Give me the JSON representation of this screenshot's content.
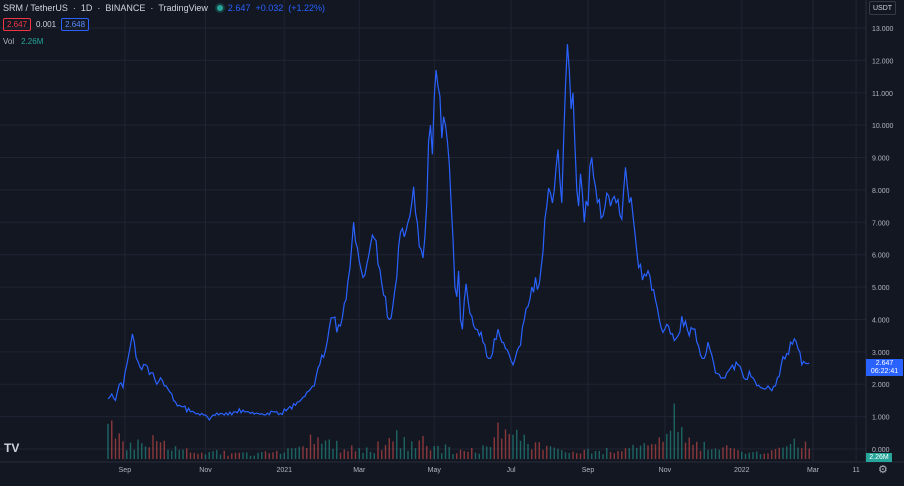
{
  "header": {
    "symbol": "SRM / TetherUS",
    "interval": "1D",
    "exchange": "BINANCE",
    "source": "TradingView",
    "last_price": "2.647",
    "change": "+0.032",
    "change_pct": "(+1.22%)",
    "bid": "2.647",
    "spread": "0.001",
    "ask": "2.648",
    "vol_label": "Vol",
    "vol_value": "2.26M"
  },
  "currency": "USDT",
  "price_badge": {
    "price": "2.647",
    "countdown": "06:22:41"
  },
  "volume_badge": "2.26M",
  "logo": "TV",
  "colors": {
    "background": "#131722",
    "line": "#2962ff",
    "volume_up": "#26a69a",
    "volume_down": "#ef5350",
    "grid": "#1f2433",
    "axis_text": "#b2b5be"
  },
  "chart_data": {
    "type": "line",
    "series": [
      {
        "values": [
          [
            0,
            1.55
          ],
          [
            2,
            1.7
          ],
          [
            4,
            1.5
          ],
          [
            6,
            2.0
          ],
          [
            8,
            1.9
          ],
          [
            10,
            2.6
          ],
          [
            12,
            3.2
          ],
          [
            13,
            3.55
          ],
          [
            14,
            3.3
          ],
          [
            16,
            2.7
          ],
          [
            18,
            2.45
          ],
          [
            20,
            2.6
          ],
          [
            22,
            2.3
          ],
          [
            24,
            2.35
          ],
          [
            26,
            2.0
          ],
          [
            28,
            2.2
          ],
          [
            30,
            1.95
          ],
          [
            32,
            1.85
          ],
          [
            34,
            1.7
          ],
          [
            36,
            1.45
          ],
          [
            38,
            1.35
          ],
          [
            40,
            1.3
          ],
          [
            44,
            1.15
          ],
          [
            48,
            1.1
          ],
          [
            52,
            1.05
          ],
          [
            54,
            0.9
          ],
          [
            56,
            1.05
          ],
          [
            60,
            1.1
          ],
          [
            64,
            1.05
          ],
          [
            68,
            1.15
          ],
          [
            72,
            1.2
          ],
          [
            76,
            1.1
          ],
          [
            80,
            1.1
          ],
          [
            84,
            1.05
          ],
          [
            88,
            1.15
          ],
          [
            92,
            1.1
          ],
          [
            96,
            1.25
          ],
          [
            100,
            1.35
          ],
          [
            104,
            1.6
          ],
          [
            108,
            1.85
          ],
          [
            110,
            1.95
          ],
          [
            112,
            2.5
          ],
          [
            114,
            2.9
          ],
          [
            116,
            3.05
          ],
          [
            118,
            3.75
          ],
          [
            120,
            4.05
          ],
          [
            122,
            3.6
          ],
          [
            124,
            3.8
          ],
          [
            126,
            4.5
          ],
          [
            128,
            5.2
          ],
          [
            130,
            6.3
          ],
          [
            131,
            7.0
          ],
          [
            132,
            6.4
          ],
          [
            134,
            5.8
          ],
          [
            136,
            5.3
          ],
          [
            138,
            5.7
          ],
          [
            140,
            6.3
          ],
          [
            142,
            6.5
          ],
          [
            144,
            5.7
          ],
          [
            146,
            5.1
          ],
          [
            148,
            4.7
          ],
          [
            150,
            4.0
          ],
          [
            152,
            4.45
          ],
          [
            154,
            5.3
          ],
          [
            156,
            6.7
          ],
          [
            158,
            6.55
          ],
          [
            160,
            7.0
          ],
          [
            162,
            7.6
          ],
          [
            163,
            8.1
          ],
          [
            164,
            7.3
          ],
          [
            166,
            6.25
          ],
          [
            168,
            5.9
          ],
          [
            170,
            7.6
          ],
          [
            171,
            9.5
          ],
          [
            172,
            10.0
          ],
          [
            173,
            9.1
          ],
          [
            174,
            10.9
          ],
          [
            175,
            11.7
          ],
          [
            176,
            11.2
          ],
          [
            177,
            10.9
          ],
          [
            178,
            9.6
          ],
          [
            180,
            10.0
          ],
          [
            181,
            9.5
          ],
          [
            182,
            8.8
          ],
          [
            183,
            7.6
          ],
          [
            184,
            6.5
          ],
          [
            185,
            5.0
          ],
          [
            186,
            4.7
          ],
          [
            187,
            5.5
          ],
          [
            188,
            4.0
          ],
          [
            189,
            3.7
          ],
          [
            190,
            4.6
          ],
          [
            191,
            5.1
          ],
          [
            192,
            4.6
          ],
          [
            194,
            4.1
          ],
          [
            196,
            3.7
          ],
          [
            198,
            3.5
          ],
          [
            200,
            3.3
          ],
          [
            202,
            2.85
          ],
          [
            204,
            2.8
          ],
          [
            206,
            3.4
          ],
          [
            208,
            3.7
          ],
          [
            210,
            3.3
          ],
          [
            212,
            3.1
          ],
          [
            214,
            2.9
          ],
          [
            216,
            2.6
          ],
          [
            218,
            3.0
          ],
          [
            220,
            3.2
          ],
          [
            222,
            4.0
          ],
          [
            224,
            4.4
          ],
          [
            226,
            5.0
          ],
          [
            228,
            5.3
          ],
          [
            230,
            5.1
          ],
          [
            232,
            6.1
          ],
          [
            234,
            7.5
          ],
          [
            236,
            7.9
          ],
          [
            237,
            7.6
          ],
          [
            238,
            8.0
          ],
          [
            239,
            8.7
          ],
          [
            240,
            9.25
          ],
          [
            241,
            8.3
          ],
          [
            242,
            7.6
          ],
          [
            243,
            9.5
          ],
          [
            244,
            11.2
          ],
          [
            245,
            12.5
          ],
          [
            246,
            11.7
          ],
          [
            247,
            10.5
          ],
          [
            248,
            11.0
          ],
          [
            249,
            9.4
          ],
          [
            250,
            8.0
          ],
          [
            251,
            7.5
          ],
          [
            252,
            8.5
          ],
          [
            253,
            7.9
          ],
          [
            254,
            7.0
          ],
          [
            256,
            7.5
          ],
          [
            258,
            9.0
          ],
          [
            259,
            8.4
          ],
          [
            260,
            8.1
          ],
          [
            262,
            7.7
          ],
          [
            264,
            7.2
          ],
          [
            266,
            7.9
          ],
          [
            268,
            7.5
          ],
          [
            270,
            7.8
          ],
          [
            272,
            7.7
          ],
          [
            274,
            7.1
          ],
          [
            276,
            8.7
          ],
          [
            277,
            8.1
          ],
          [
            278,
            7.6
          ],
          [
            280,
            7.2
          ],
          [
            282,
            6.1
          ],
          [
            284,
            5.7
          ],
          [
            286,
            5.4
          ],
          [
            288,
            5.5
          ],
          [
            290,
            4.9
          ],
          [
            292,
            4.6
          ],
          [
            294,
            4.0
          ],
          [
            296,
            3.6
          ],
          [
            298,
            3.85
          ],
          [
            300,
            3.55
          ],
          [
            302,
            3.35
          ],
          [
            304,
            3.5
          ],
          [
            306,
            4.1
          ],
          [
            308,
            3.95
          ],
          [
            310,
            3.5
          ],
          [
            312,
            3.7
          ],
          [
            314,
            3.3
          ],
          [
            316,
            2.9
          ],
          [
            318,
            2.8
          ],
          [
            320,
            3.3
          ],
          [
            322,
            2.9
          ],
          [
            324,
            2.35
          ],
          [
            326,
            2.3
          ],
          [
            328,
            2.2
          ],
          [
            330,
            2.35
          ],
          [
            332,
            2.5
          ],
          [
            334,
            2.45
          ],
          [
            336,
            2.6
          ],
          [
            338,
            2.4
          ],
          [
            340,
            2.15
          ],
          [
            342,
            2.4
          ],
          [
            344,
            2.2
          ],
          [
            346,
            1.95
          ],
          [
            348,
            1.9
          ],
          [
            350,
            1.85
          ],
          [
            352,
            1.95
          ],
          [
            354,
            1.8
          ],
          [
            356,
            1.95
          ],
          [
            358,
            2.25
          ],
          [
            360,
            2.85
          ],
          [
            362,
            2.95
          ],
          [
            364,
            3.3
          ],
          [
            366,
            3.4
          ],
          [
            368,
            3.1
          ],
          [
            370,
            2.6
          ],
          [
            372,
            2.65
          ],
          [
            374,
            2.65
          ]
        ]
      }
    ],
    "volume": [
      2.5,
      0.9,
      0.6,
      0.5,
      0.55,
      0.4,
      0.7,
      0.5,
      0.45,
      0.35,
      0.4,
      0.3,
      0.3,
      0.25,
      0.3,
      0.25,
      0.2,
      0.22,
      0.2,
      0.18,
      0.2,
      0.22,
      0.25,
      0.2,
      0.3,
      0.35,
      0.5,
      0.8,
      0.6,
      0.7,
      0.5,
      0.45,
      0.5,
      0.4,
      0.35,
      0.3,
      0.5,
      0.6,
      1.1,
      0.7,
      0.5,
      0.6,
      0.9,
      0.5,
      0.4,
      0.4,
      0.35,
      0.35,
      0.3,
      0.3,
      0.5,
      0.7,
      1.0,
      0.9,
      1.7,
      0.8,
      0.6,
      0.5,
      0.45,
      0.4,
      0.35,
      0.3,
      0.3,
      0.25,
      0.3,
      0.35,
      0.3,
      0.25,
      0.3,
      0.4,
      0.5,
      0.6,
      0.7,
      0.9,
      1.2,
      1.6,
      1.0,
      0.8,
      0.6,
      0.5,
      0.5,
      0.45,
      0.4,
      0.35,
      0.3,
      0.3,
      0.28,
      0.25,
      0.3,
      0.6,
      0.5,
      0.8,
      0.7,
      0.5
    ],
    "x_ticks": [
      {
        "label": "Sep",
        "x": 9
      },
      {
        "label": "Nov",
        "x": 52
      },
      {
        "label": "2021",
        "x": 94
      },
      {
        "label": "Mar",
        "x": 134
      },
      {
        "label": "May",
        "x": 174
      },
      {
        "label": "Jul",
        "x": 215
      },
      {
        "label": "Sep",
        "x": 256
      },
      {
        "label": "Nov",
        "x": 297
      },
      {
        "label": "2022",
        "x": 338
      },
      {
        "label": "Mar",
        "x": 376
      },
      {
        "label": "11",
        "x": 399
      }
    ],
    "y_ticks": [
      "13.000",
      "12.000",
      "11.000",
      "10.000",
      "9.000",
      "8.000",
      "7.000",
      "6.000",
      "5.000",
      "4.000",
      "3.000",
      "2.000",
      "1.000",
      "0.000"
    ],
    "ylim": [
      0,
      13
    ],
    "xlim": [
      0,
      400
    ]
  }
}
